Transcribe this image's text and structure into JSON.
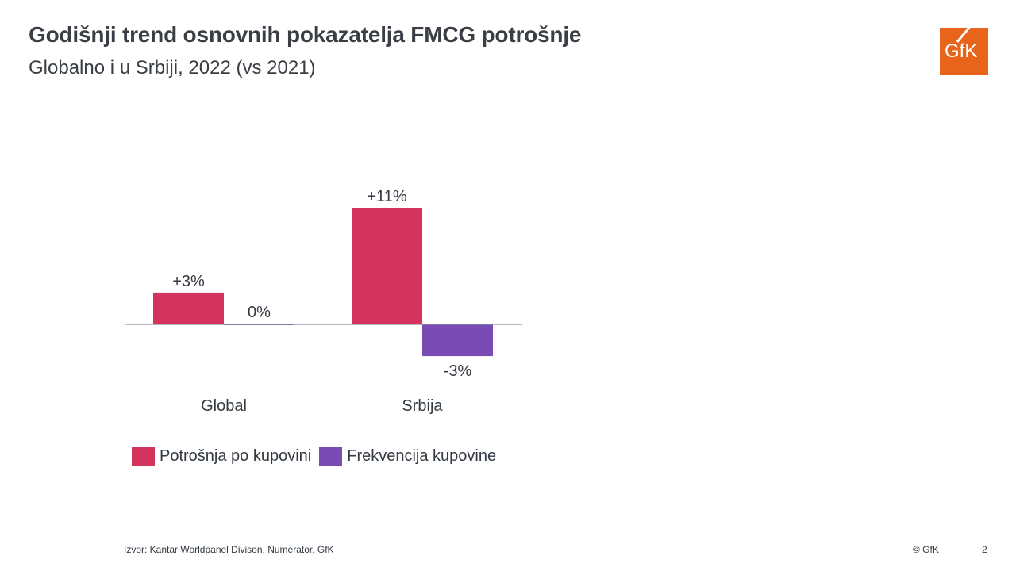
{
  "header": {
    "title": "Godišnji trend osnovnih pokazatelja FMCG potrošnje",
    "subtitle": "Globalno i u Srbiji, 2022 (vs 2021)"
  },
  "logo": {
    "text": "GfK",
    "color": "#e8641b"
  },
  "chart_data": {
    "type": "bar",
    "categories": [
      "Global",
      "Srbija"
    ],
    "series": [
      {
        "name": "Potrošnja po kupovini",
        "values": [
          3,
          11
        ],
        "labels": [
          "+3%",
          "+11%"
        ],
        "color": "#d4345c"
      },
      {
        "name": "Frekvencija kupovine",
        "values": [
          0,
          -3
        ],
        "labels": [
          "0%",
          "-3%"
        ],
        "color": "#7b4bb5"
      }
    ],
    "ylim": [
      -4,
      12
    ],
    "grid": false,
    "legend": "bottom-left"
  },
  "footer": {
    "source": "Izvor: Kantar Worldpanel Divison, Numerator, GfK",
    "copyright": "© GfK",
    "page": "2"
  }
}
